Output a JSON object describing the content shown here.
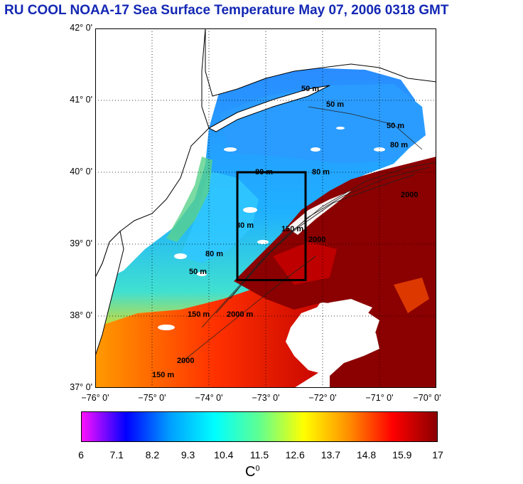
{
  "title": "RU COOL  NOAA-17 Sea Surface Temperature May 07, 2006 0318 GMT",
  "map": {
    "lat_labels": [
      "42° 0'",
      "41° 0'",
      "40° 0'",
      "39° 0'",
      "38° 0'",
      "37° 0'"
    ],
    "lon_labels": [
      "−76° 0'",
      "−75° 0'",
      "−74° 0'",
      "−73° 0'",
      "−72° 0'",
      "−71° 0'",
      "−70° 0'"
    ],
    "lat_range": [
      37,
      42
    ],
    "lon_range": [
      -76,
      -70
    ],
    "study_box": {
      "lon": [
        -73.5,
        -72.3
      ],
      "lat": [
        38.5,
        40.0
      ]
    },
    "contour_labels": [
      "50 m",
      "50 m",
      "50 m",
      "80 m",
      "80 m",
      "80 m",
      "80 m",
      "150 m",
      "150 m",
      "150 m",
      "2000",
      "2000",
      "2000",
      "2000 m",
      "80 m",
      "50 m"
    ]
  },
  "colorbar": {
    "tick_labels": [
      "6",
      "7.1",
      "8.2",
      "9.3",
      "10.4",
      "11.5",
      "12.6",
      "13.7",
      "14.8",
      "15.9",
      "17"
    ],
    "min": 6,
    "max": 17,
    "unit_base": "C",
    "unit_sup": "0",
    "stops": [
      "#ff10ff",
      "#0000ff",
      "#00a0ff",
      "#00ffff",
      "#60ff90",
      "#ffff00",
      "#ff9000",
      "#ff0000",
      "#8b0000"
    ]
  }
}
